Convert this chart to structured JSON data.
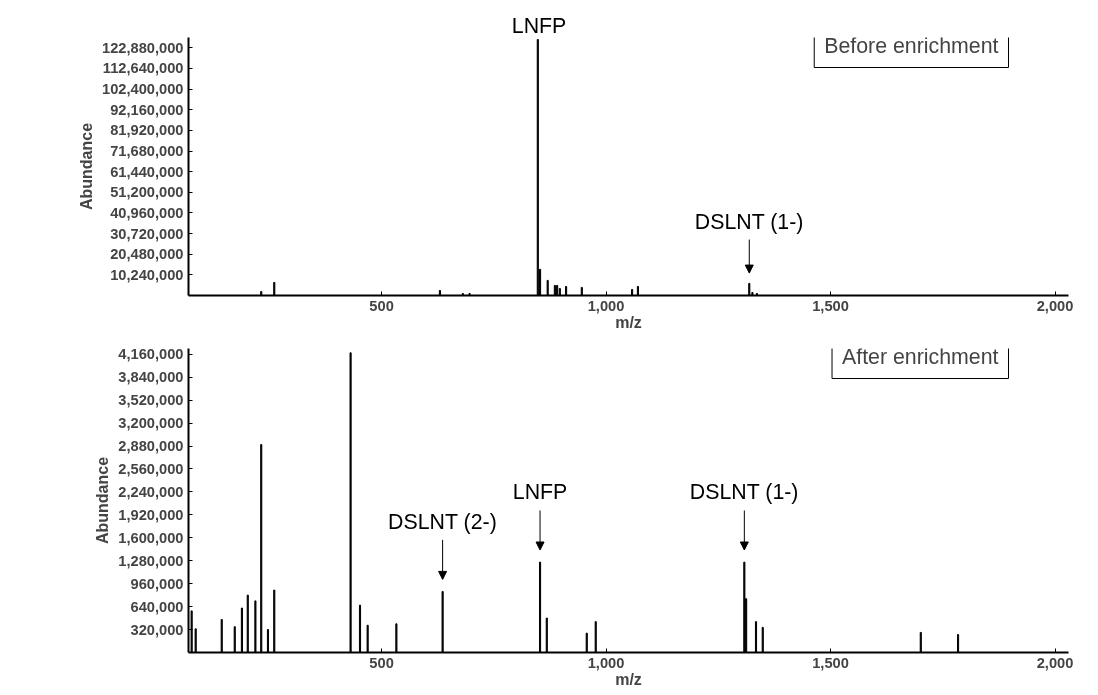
{
  "chart_data": [
    {
      "type": "bar",
      "title": "Before enrichment",
      "xlabel": "m/z",
      "ylabel": "Abundance",
      "x": [
        232,
        261,
        630,
        681,
        696,
        848,
        853,
        870,
        886,
        891,
        897,
        911,
        946,
        1058,
        1071,
        1319,
        1326,
        1336
      ],
      "values": [
        2000000,
        6500000,
        2500000,
        1000000,
        1000000,
        127000000,
        13000000,
        7500000,
        5000000,
        5000000,
        3500000,
        4500000,
        4000000,
        3000000,
        4500000,
        6000000,
        1500000,
        1000000
      ],
      "color": "#000000",
      "xlim": [
        70,
        2030
      ],
      "xticks": [
        {
          "value": 500,
          "label": "500"
        },
        {
          "value": 1000,
          "label": "1,000"
        },
        {
          "value": 1500,
          "label": "1,500"
        },
        {
          "value": 2000,
          "label": "2,000"
        }
      ],
      "ylim": [
        0,
        128000000
      ],
      "yticks": [
        {
          "value": 10240000,
          "label": "10,240,000"
        },
        {
          "value": 20480000,
          "label": "20,480,000"
        },
        {
          "value": 30720000,
          "label": "30,720,000"
        },
        {
          "value": 40960000,
          "label": "40,960,000"
        },
        {
          "value": 51200000,
          "label": "51,200,000"
        },
        {
          "value": 61440000,
          "label": "61,440,000"
        },
        {
          "value": 71680000,
          "label": "71,680,000"
        },
        {
          "value": 81920000,
          "label": "81,920,000"
        },
        {
          "value": 92160000,
          "label": "92,160,000"
        },
        {
          "value": 102400000,
          "label": "102,400,000"
        },
        {
          "value": 112640000,
          "label": "112,640,000"
        },
        {
          "value": 122880000,
          "label": "122,880,000"
        }
      ],
      "grid": false,
      "annotations": [
        {
          "text": "LNFP",
          "x": 848,
          "y": 127000000
        },
        {
          "text": "DSLNT (1-)",
          "x": 1319,
          "y": 6000000
        }
      ]
    },
    {
      "type": "bar",
      "title": "After enrichment",
      "xlabel": "m/z",
      "ylabel": "Abundance",
      "x": [
        77,
        86,
        144,
        173,
        189,
        202,
        219,
        232,
        247,
        261,
        431,
        452,
        469,
        533,
        636,
        853,
        868,
        957,
        977,
        1308,
        1312,
        1334,
        1349,
        1701,
        1784
      ],
      "values": [
        580000,
        330000,
        460000,
        360000,
        620000,
        800000,
        720000,
        2900000,
        320000,
        870000,
        4180000,
        660000,
        380000,
        400000,
        850000,
        1260000,
        480000,
        270000,
        430000,
        1260000,
        750000,
        430000,
        350000,
        280000,
        250000
      ],
      "color": "#000000",
      "xlim": [
        70,
        2030
      ],
      "xticks": [
        {
          "value": 500,
          "label": "500"
        },
        {
          "value": 1000,
          "label": "1,000"
        },
        {
          "value": 1500,
          "label": "1,500"
        },
        {
          "value": 2000,
          "label": "2,000"
        }
      ],
      "ylim": [
        0,
        4240000
      ],
      "yticks": [
        {
          "value": 320000,
          "label": "320,000"
        },
        {
          "value": 640000,
          "label": "640,000"
        },
        {
          "value": 960000,
          "label": "960,000"
        },
        {
          "value": 1280000,
          "label": "1,280,000"
        },
        {
          "value": 1600000,
          "label": "1,600,000"
        },
        {
          "value": 1920000,
          "label": "1,920,000"
        },
        {
          "value": 2240000,
          "label": "2,240,000"
        },
        {
          "value": 2560000,
          "label": "2,560,000"
        },
        {
          "value": 2880000,
          "label": "2,880,000"
        },
        {
          "value": 3200000,
          "label": "3,200,000"
        },
        {
          "value": 3520000,
          "label": "3,520,000"
        },
        {
          "value": 3840000,
          "label": "3,840,000"
        },
        {
          "value": 4160000,
          "label": "4,160,000"
        }
      ],
      "grid": false,
      "annotations": [
        {
          "text": "DSLNT (2-)",
          "x": 636,
          "y": 850000
        },
        {
          "text": "LNFP",
          "x": 853,
          "y": 1260000
        },
        {
          "text": "DSLNT (1-)",
          "x": 1308,
          "y": 1260000
        }
      ]
    }
  ]
}
